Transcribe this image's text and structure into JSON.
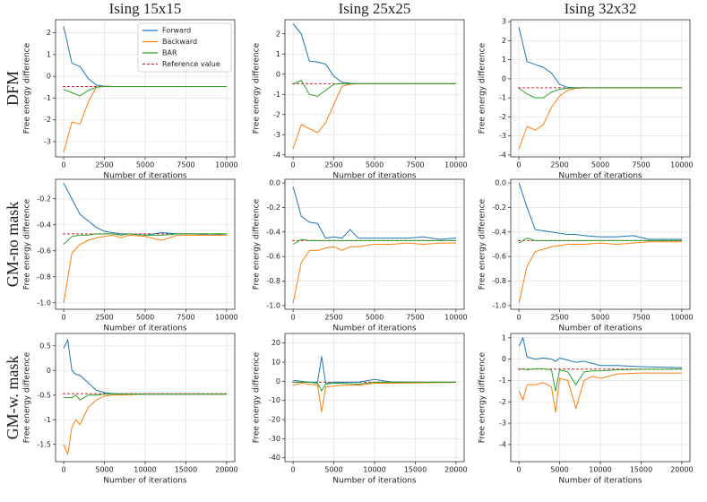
{
  "column_titles": [
    "Ising 15x15",
    "Ising 25x25",
    "Ising 32x32"
  ],
  "row_labels": [
    "DFM",
    "GM-no mask",
    "GM-w. mask"
  ],
  "legend": [
    {
      "name": "Forward",
      "color": "#1f77b4"
    },
    {
      "name": "Backward",
      "color": "#ff7f0e"
    },
    {
      "name": "BAR",
      "color": "#2ca02c"
    },
    {
      "name": "Reference value",
      "color": "#d62728",
      "dashed": true
    }
  ],
  "chart_data": [
    {
      "type": "line",
      "xlabel": "Number of iterations",
      "ylabel": "Free energy difference",
      "x": [
        0,
        500,
        1000,
        1500,
        2000,
        2500,
        3000,
        3500,
        4000,
        5000,
        6000,
        7000,
        8000,
        9000,
        10000
      ],
      "xlim": [
        -500,
        10500
      ],
      "xticks": [
        0,
        2500,
        5000,
        7500,
        10000
      ],
      "ylim": [
        -3.7,
        2.6
      ],
      "yticks": [
        -3,
        -2,
        -1,
        0,
        1,
        2
      ],
      "grid": true,
      "reference": -0.47,
      "series": [
        {
          "values": [
            2.3,
            0.6,
            0.45,
            -0.1,
            -0.4,
            -0.45,
            -0.47,
            -0.47,
            -0.47,
            -0.47,
            -0.47,
            -0.47,
            -0.47,
            -0.47,
            -0.47
          ]
        },
        {
          "values": [
            -3.5,
            -2.1,
            -2.2,
            -1.2,
            -0.5,
            -0.45,
            -0.47,
            -0.47,
            -0.47,
            -0.47,
            -0.47,
            -0.47,
            -0.47,
            -0.47,
            -0.47
          ]
        },
        {
          "values": [
            -0.6,
            -0.75,
            -0.9,
            -0.65,
            -0.5,
            -0.47,
            -0.47,
            -0.47,
            -0.47,
            -0.47,
            -0.47,
            -0.47,
            -0.47,
            -0.47,
            -0.47
          ]
        }
      ]
    },
    {
      "type": "line",
      "xlabel": "Number of iterations",
      "ylabel": "Free energy difference",
      "x": [
        0,
        500,
        1000,
        1500,
        2000,
        2500,
        3000,
        3500,
        4000,
        5000,
        6000,
        7000,
        8000,
        9000,
        10000
      ],
      "xlim": [
        -500,
        10500
      ],
      "xticks": [
        0,
        2500,
        5000,
        7500,
        10000
      ],
      "ylim": [
        -4.1,
        2.7
      ],
      "yticks": [
        -4,
        -3,
        -2,
        -1,
        0,
        1,
        2
      ],
      "grid": true,
      "reference": -0.47,
      "series": [
        {
          "values": [
            2.5,
            2.0,
            0.65,
            0.6,
            0.5,
            -0.1,
            -0.4,
            -0.45,
            -0.47,
            -0.47,
            -0.47,
            -0.47,
            -0.47,
            -0.47,
            -0.47
          ]
        },
        {
          "values": [
            -3.7,
            -2.5,
            -2.7,
            -2.9,
            -2.4,
            -1.5,
            -0.6,
            -0.5,
            -0.47,
            -0.47,
            -0.47,
            -0.47,
            -0.47,
            -0.47,
            -0.47
          ]
        },
        {
          "values": [
            -0.5,
            -0.3,
            -1.0,
            -1.1,
            -0.8,
            -0.5,
            -0.47,
            -0.47,
            -0.47,
            -0.47,
            -0.47,
            -0.47,
            -0.47,
            -0.47,
            -0.47
          ]
        }
      ]
    },
    {
      "type": "line",
      "xlabel": "Number of iterations",
      "ylabel": "Free energy difference",
      "x": [
        0,
        500,
        1000,
        1500,
        2000,
        2500,
        3000,
        3500,
        4000,
        5000,
        6000,
        7000,
        8000,
        9000,
        10000
      ],
      "xlim": [
        -500,
        10500
      ],
      "xticks": [
        0,
        2500,
        5000,
        7500,
        10000
      ],
      "ylim": [
        -4.1,
        3.1
      ],
      "yticks": [
        -4,
        -3,
        -2,
        -1,
        0,
        1,
        2,
        3
      ],
      "grid": true,
      "reference": -0.47,
      "series": [
        {
          "values": [
            2.7,
            0.9,
            0.75,
            0.6,
            0.3,
            -0.3,
            -0.45,
            -0.47,
            -0.47,
            -0.47,
            -0.47,
            -0.47,
            -0.47,
            -0.47,
            -0.47
          ]
        },
        {
          "values": [
            -3.7,
            -2.5,
            -2.7,
            -2.4,
            -1.5,
            -0.9,
            -0.6,
            -0.5,
            -0.48,
            -0.47,
            -0.47,
            -0.47,
            -0.47,
            -0.47,
            -0.47
          ]
        },
        {
          "values": [
            -0.5,
            -0.8,
            -1.0,
            -1.0,
            -0.7,
            -0.55,
            -0.5,
            -0.48,
            -0.47,
            -0.47,
            -0.47,
            -0.47,
            -0.47,
            -0.47,
            -0.47
          ]
        }
      ]
    },
    {
      "type": "line",
      "xlabel": "Number of iterations",
      "ylabel": "Free energy difference",
      "x": [
        0,
        500,
        1000,
        1500,
        2000,
        2500,
        3000,
        3500,
        4000,
        5000,
        6000,
        7000,
        8000,
        9000,
        10000
      ],
      "xlim": [
        -500,
        10500
      ],
      "xticks": [
        0,
        2500,
        5000,
        7500,
        10000
      ],
      "ylim": [
        -1.05,
        -0.05
      ],
      "yticks": [
        {
          "value": -1,
          "label": "-1.0"
        },
        -0.8,
        -0.6,
        -0.4,
        -0.2
      ],
      "grid": true,
      "reference": -0.47,
      "series": [
        {
          "values": [
            -0.08,
            -0.2,
            -0.32,
            -0.37,
            -0.42,
            -0.45,
            -0.46,
            -0.47,
            -0.47,
            -0.48,
            -0.46,
            -0.47,
            -0.47,
            -0.48,
            -0.47
          ]
        },
        {
          "values": [
            -1.0,
            -0.62,
            -0.55,
            -0.52,
            -0.5,
            -0.49,
            -0.48,
            -0.5,
            -0.48,
            -0.49,
            -0.52,
            -0.48,
            -0.48,
            -0.48,
            -0.48
          ]
        },
        {
          "values": [
            -0.55,
            -0.49,
            -0.48,
            -0.48,
            -0.47,
            -0.47,
            -0.47,
            -0.48,
            -0.47,
            -0.48,
            -0.48,
            -0.47,
            -0.47,
            -0.47,
            -0.47
          ]
        }
      ]
    },
    {
      "type": "line",
      "xlabel": "Number of iterations",
      "ylabel": "Free energy difference",
      "x": [
        0,
        500,
        1000,
        1500,
        2000,
        2500,
        3000,
        3500,
        4000,
        5000,
        6000,
        7000,
        8000,
        9000,
        10000
      ],
      "xlim": [
        -500,
        10500
      ],
      "xticks": [
        0,
        2500,
        5000,
        7500,
        10000
      ],
      "ylim": [
        -1.03,
        0.03
      ],
      "yticks": [
        {
          "value": -1,
          "label": "-1.0"
        },
        -0.8,
        -0.6,
        -0.4,
        -0.2,
        {
          "value": 0,
          "label": "0.0"
        }
      ],
      "grid": true,
      "reference": -0.47,
      "series": [
        {
          "values": [
            -0.03,
            -0.27,
            -0.32,
            -0.33,
            -0.45,
            -0.44,
            -0.45,
            -0.38,
            -0.45,
            -0.45,
            -0.45,
            -0.45,
            -0.44,
            -0.46,
            -0.45
          ]
        },
        {
          "values": [
            -0.98,
            -0.65,
            -0.55,
            -0.55,
            -0.53,
            -0.52,
            -0.55,
            -0.52,
            -0.52,
            -0.5,
            -0.5,
            -0.49,
            -0.5,
            -0.49,
            -0.49
          ]
        },
        {
          "values": [
            -0.5,
            -0.46,
            -0.47,
            -0.47,
            -0.47,
            -0.47,
            -0.47,
            -0.47,
            -0.47,
            -0.47,
            -0.47,
            -0.47,
            -0.47,
            -0.47,
            -0.47
          ]
        }
      ]
    },
    {
      "type": "line",
      "xlabel": "Number of iterations",
      "ylabel": "Free energy difference",
      "x": [
        0,
        500,
        1000,
        1500,
        2000,
        2500,
        3000,
        3500,
        4000,
        5000,
        6000,
        7000,
        8000,
        9000,
        10000
      ],
      "xlim": [
        -500,
        10500
      ],
      "xticks": [
        0,
        2500,
        5000,
        7500,
        10000
      ],
      "ylim": [
        -1.03,
        0.03
      ],
      "yticks": [
        {
          "value": -1,
          "label": "-1.0"
        },
        -0.8,
        -0.6,
        -0.4,
        -0.2,
        {
          "value": 0,
          "label": "0.0"
        }
      ],
      "grid": true,
      "reference": -0.47,
      "series": [
        {
          "values": [
            0.0,
            -0.2,
            -0.38,
            -0.39,
            -0.4,
            -0.41,
            -0.42,
            -0.42,
            -0.43,
            -0.44,
            -0.44,
            -0.43,
            -0.46,
            -0.46,
            -0.46
          ]
        },
        {
          "values": [
            -0.98,
            -0.68,
            -0.56,
            -0.54,
            -0.52,
            -0.51,
            -0.5,
            -0.5,
            -0.5,
            -0.49,
            -0.5,
            -0.49,
            -0.48,
            -0.48,
            -0.48
          ]
        },
        {
          "values": [
            -0.49,
            -0.45,
            -0.47,
            -0.47,
            -0.47,
            -0.47,
            -0.47,
            -0.47,
            -0.47,
            -0.47,
            -0.47,
            -0.47,
            -0.47,
            -0.47,
            -0.47
          ]
        }
      ]
    },
    {
      "type": "line",
      "xlabel": "Number of iterations",
      "ylabel": "Free energy difference",
      "x": [
        0,
        500,
        1000,
        1500,
        2000,
        3000,
        4000,
        5000,
        6000,
        8000,
        10000,
        12000,
        14000,
        16000,
        18000,
        20000
      ],
      "xlim": [
        -1000,
        21000
      ],
      "xticks": [
        0,
        5000,
        10000,
        15000,
        20000
      ],
      "ylim": [
        -1.85,
        0.75
      ],
      "yticks": [
        -1.5,
        -1,
        -0.5,
        0,
        0.5
      ],
      "grid": true,
      "reference": -0.47,
      "series": [
        {
          "values": [
            0.45,
            0.62,
            0.0,
            -0.08,
            -0.1,
            -0.25,
            -0.4,
            -0.45,
            -0.47,
            -0.48,
            -0.48,
            -0.48,
            -0.48,
            -0.48,
            -0.48,
            -0.48
          ]
        },
        {
          "values": [
            -1.5,
            -1.7,
            -1.15,
            -1.0,
            -1.1,
            -0.75,
            -0.6,
            -0.52,
            -0.5,
            -0.49,
            -0.48,
            -0.48,
            -0.48,
            -0.48,
            -0.48,
            -0.48
          ]
        },
        {
          "values": [
            -0.55,
            -0.55,
            -0.55,
            -0.5,
            -0.6,
            -0.5,
            -0.5,
            -0.48,
            -0.48,
            -0.48,
            -0.48,
            -0.48,
            -0.48,
            -0.48,
            -0.48,
            -0.48
          ]
        }
      ]
    },
    {
      "type": "line",
      "xlabel": "Number of iterations",
      "ylabel": "Free energy difference",
      "x": [
        0,
        1000,
        2000,
        3000,
        3500,
        4000,
        5000,
        6000,
        8000,
        10000,
        12000,
        15000,
        20000
      ],
      "xlim": [
        -1000,
        21000
      ],
      "xticks": [
        0,
        5000,
        10000,
        15000,
        20000
      ],
      "ylim": [
        -42,
        25
      ],
      "yticks": [
        -40,
        -30,
        -20,
        -10,
        0,
        10,
        20
      ],
      "grid": true,
      "reference": -0.47,
      "series": [
        {
          "values": [
            0.5,
            0,
            -0.5,
            -0.5,
            13,
            -1,
            -0.5,
            -0.5,
            -0.5,
            1,
            -0.3,
            -0.5,
            -0.5
          ]
        },
        {
          "values": [
            -2,
            -1,
            -1.5,
            -2,
            -16,
            -3,
            -2.5,
            -2,
            -2,
            -1,
            -1,
            -0.8,
            -0.6
          ]
        },
        {
          "values": [
            -0.5,
            -0.5,
            -0.5,
            -1,
            -5,
            -1.5,
            -1,
            -1,
            -1.5,
            -0.5,
            -0.5,
            -0.5,
            -0.5
          ]
        }
      ]
    },
    {
      "type": "line",
      "xlabel": "Number of iterations",
      "ylabel": "Free energy difference",
      "x": [
        0,
        500,
        1000,
        2000,
        3000,
        4000,
        4500,
        5000,
        6000,
        7000,
        8000,
        9000,
        10000,
        12000,
        15000,
        20000
      ],
      "xlim": [
        -1000,
        21000
      ],
      "xticks": [
        0,
        5000,
        10000,
        15000,
        20000
      ],
      "ylim": [
        -4.8,
        1.2
      ],
      "yticks": [
        -4,
        -3,
        -2,
        -1,
        0,
        1
      ],
      "grid": true,
      "reference": -0.47,
      "series": [
        {
          "values": [
            0.6,
            1.0,
            0.1,
            0.0,
            0.05,
            0.0,
            -0.1,
            0.05,
            -0.05,
            -0.15,
            -0.1,
            -0.2,
            -0.3,
            -0.3,
            -0.35,
            -0.4
          ]
        },
        {
          "values": [
            -1.5,
            -1.9,
            -1.2,
            -1.2,
            -1.1,
            -1.3,
            -2.5,
            -0.9,
            -1.0,
            -2.3,
            -1.0,
            -0.8,
            -0.9,
            -0.7,
            -0.65,
            -0.65
          ]
        },
        {
          "values": [
            -0.5,
            -0.45,
            -0.5,
            -0.45,
            -0.45,
            -0.5,
            -1.5,
            -0.5,
            -0.6,
            -1.2,
            -0.6,
            -0.55,
            -0.55,
            -0.5,
            -0.48,
            -0.47
          ]
        }
      ]
    }
  ]
}
